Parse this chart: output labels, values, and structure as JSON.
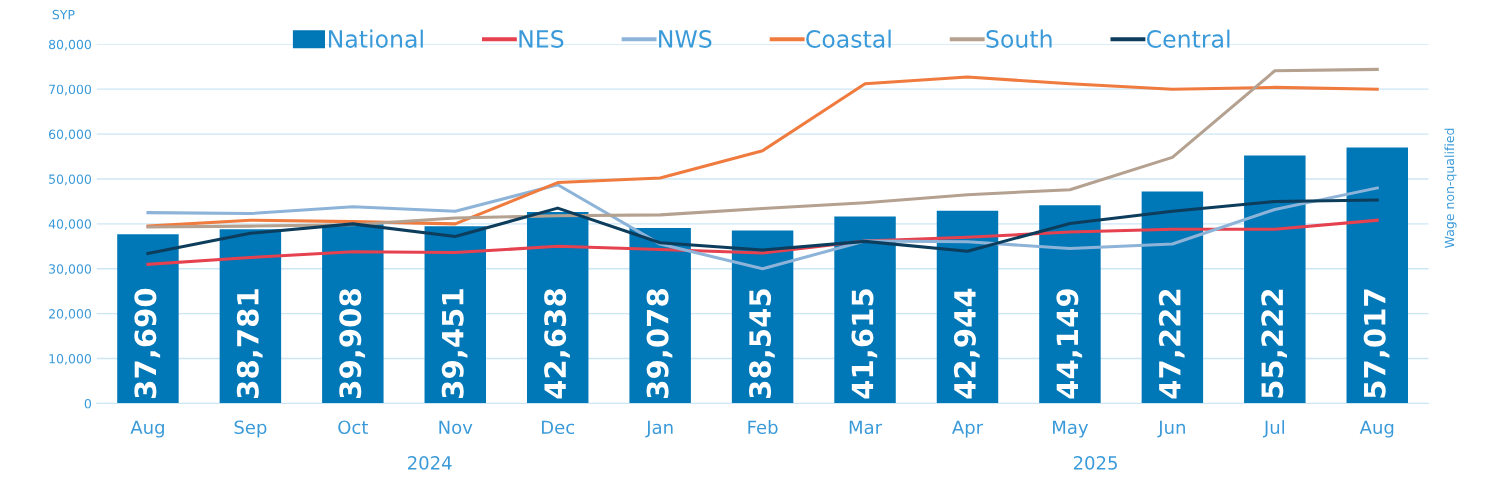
{
  "chart_data": {
    "type": "bar",
    "ylabel": "SYP",
    "y2label": "Wage non-qualified",
    "categories": [
      "Aug",
      "Sep",
      "Oct",
      "Nov",
      "Dec",
      "Jan",
      "Feb",
      "Mar",
      "Apr",
      "May",
      "Jun",
      "Jul",
      "Aug"
    ],
    "series": [
      {
        "name": "National",
        "color": "#0077b6",
        "values": [
          37690,
          38781,
          39908,
          39451,
          42638,
          39078,
          38545,
          41615,
          42944,
          44149,
          47222,
          55222,
          57017
        ],
        "value_labels": [
          "37,690",
          "38,781",
          "39,908",
          "39,451",
          "42,638",
          "39,078",
          "38,545",
          "41,615",
          "42,944",
          "44,149",
          "47,222",
          "55,222",
          "57,017"
        ]
      },
      {
        "name": "NES",
        "type": "line",
        "color": "#e5414f",
        "values": [
          31000,
          32500,
          33800,
          33600,
          35000,
          34300,
          33500,
          36200,
          37000,
          38200,
          38800,
          38800,
          40800
        ]
      },
      {
        "name": "NWS",
        "type": "line",
        "color": "#8db4d8",
        "values": [
          42500,
          42300,
          43800,
          42800,
          48700,
          35500,
          30000,
          36200,
          36000,
          34500,
          35500,
          43200,
          48000
        ]
      },
      {
        "name": "Coastal",
        "type": "line",
        "color": "#f07b3f",
        "values": [
          39500,
          40800,
          40500,
          40000,
          49200,
          50200,
          56300,
          71200,
          72700,
          71200,
          70000,
          70400,
          70000
        ]
      },
      {
        "name": "South",
        "type": "line",
        "color": "#b5a190",
        "values": [
          39300,
          39500,
          39800,
          41300,
          41800,
          42000,
          43400,
          44700,
          46500,
          47600,
          54800,
          74100,
          74400
        ]
      },
      {
        "name": "Central",
        "type": "line",
        "color": "#0d3d5c",
        "values": [
          33400,
          37900,
          40000,
          37200,
          43500,
          35800,
          34200,
          36100,
          33900,
          40100,
          42800,
          45000,
          45300
        ]
      }
    ],
    "ylim": [
      0,
      80000
    ],
    "yticks": [
      {
        "value": 0,
        "label": "0"
      },
      {
        "value": 10000,
        "label": "10,000"
      },
      {
        "value": 20000,
        "label": "20,000"
      },
      {
        "value": 30000,
        "label": "30,000"
      },
      {
        "value": 40000,
        "label": "40,000"
      },
      {
        "value": 50000,
        "label": "50,000"
      },
      {
        "value": 60000,
        "label": "60,000"
      },
      {
        "value": 70000,
        "label": "70,000"
      },
      {
        "value": 80000,
        "label": "80,000"
      }
    ],
    "grid": "y",
    "legend": "top",
    "annotations": [
      "2024",
      "2025"
    ]
  }
}
